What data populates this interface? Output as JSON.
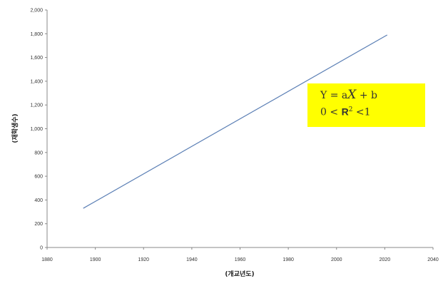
{
  "chart_data": {
    "type": "line",
    "title": "",
    "xlabel": "(개교년도)",
    "ylabel": "(재학생수)",
    "xlim": [
      1880,
      2040
    ],
    "ylim": [
      0,
      2000
    ],
    "x_ticks": [
      1880,
      1900,
      1920,
      1940,
      1960,
      1980,
      2000,
      2020,
      2040
    ],
    "y_ticks": [
      0,
      200,
      400,
      600,
      800,
      1000,
      1200,
      1400,
      1600,
      1800,
      2000
    ],
    "x_tick_labels": [
      "1880",
      "1900",
      "1920",
      "1940",
      "1960",
      "1980",
      "2000",
      "2020",
      "2040"
    ],
    "y_tick_labels": [
      "0",
      "200",
      "400",
      "600",
      "800",
      "1,000",
      "1,200",
      "1,400",
      "1,600",
      "1,800",
      "2,000"
    ],
    "grid": false,
    "line_color": "#5b7fb5",
    "series": [
      {
        "x": [
          1895,
          2021
        ],
        "y": [
          330,
          1790
        ]
      }
    ],
    "annotation": {
      "background": "#ffff00",
      "line1": {
        "y": "Y",
        "eq": "=",
        "a": "a",
        "x": "X",
        "plus": "+",
        "b": "b"
      },
      "line2": {
        "zero": "0",
        "lt1": "<",
        "r": "R",
        "sup": "2",
        "lt2": "<",
        "one": "1"
      }
    }
  }
}
